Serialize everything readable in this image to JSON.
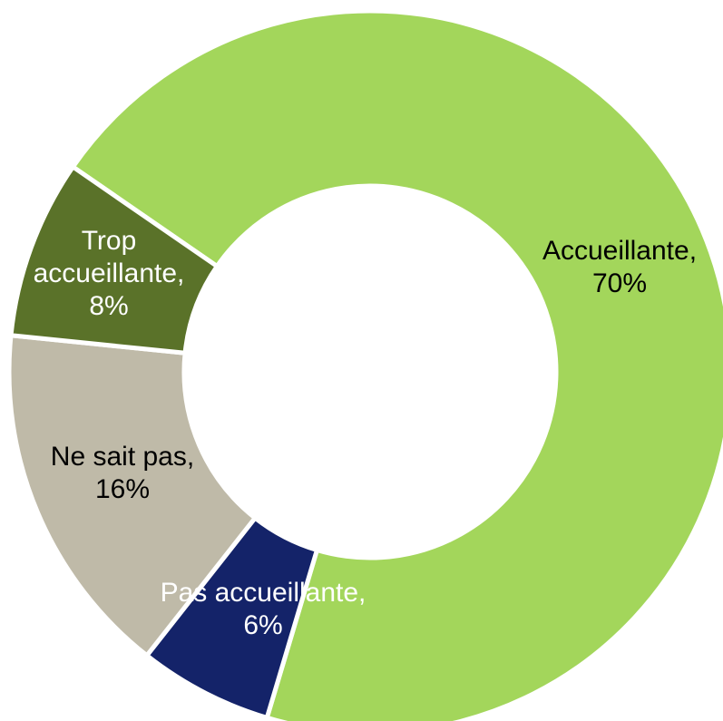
{
  "chart_data": {
    "type": "donut",
    "categories": [
      "Accueillante,",
      "Pas accueillante,",
      "Ne sait pas,",
      "Trop accueillante,"
    ],
    "values": [
      70,
      6,
      16,
      8
    ],
    "value_labels": [
      "70%",
      "6%",
      "16%",
      "8%"
    ],
    "colors": [
      "#a3d65b",
      "#142369",
      "#bfbaa8",
      "#5a7229"
    ]
  }
}
